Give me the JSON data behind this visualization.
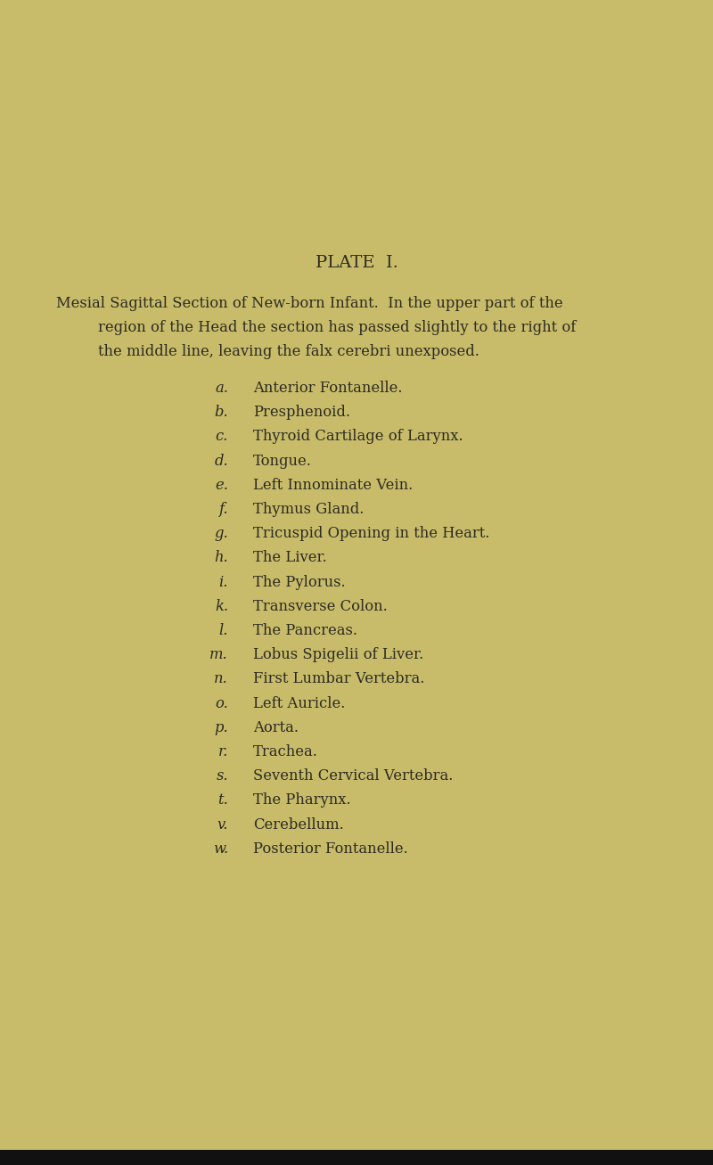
{
  "background_color": "#c8bc6a",
  "text_color": "#2c2a22",
  "title": "PLATE  I.",
  "title_fontsize": 14,
  "intro_lines": [
    "Mesial Sagittal Section of New-born Infant.  In the upper part of the",
    "region of the Head the section has passed slightly to the right of",
    "the middle line, leaving the falx cerebri unexposed."
  ],
  "intro_fontsize": 11.8,
  "items": [
    [
      "a.",
      "Anterior Fontanelle."
    ],
    [
      "b.",
      "Presphenoid."
    ],
    [
      "c.",
      "Thyroid Cartilage of Larynx."
    ],
    [
      "d.",
      "Tongue."
    ],
    [
      "e.",
      "Left Innominate Vein."
    ],
    [
      "f.",
      "Thymus Gland."
    ],
    [
      "g.",
      "Tricuspid Opening in the Heart."
    ],
    [
      "h.",
      "The Liver."
    ],
    [
      "i.",
      "The Pylorus."
    ],
    [
      "k.",
      "Transverse Colon."
    ],
    [
      "l.",
      "The Pancreas."
    ],
    [
      "m.",
      "Lobus Spigelii of Liver."
    ],
    [
      "n.",
      "First Lumbar Vertebra."
    ],
    [
      "o.",
      "Left Auricle."
    ],
    [
      "p.",
      "Aorta."
    ],
    [
      "r.",
      "Trachea."
    ],
    [
      "s.",
      "Seventh Cervical Vertebra."
    ],
    [
      "t.",
      "The Pharynx."
    ],
    [
      "v.",
      "Cerebellum."
    ],
    [
      "w.",
      "Posterior Fontanelle."
    ]
  ],
  "items_fontsize": 11.8,
  "bottom_bar_color": "#111111"
}
